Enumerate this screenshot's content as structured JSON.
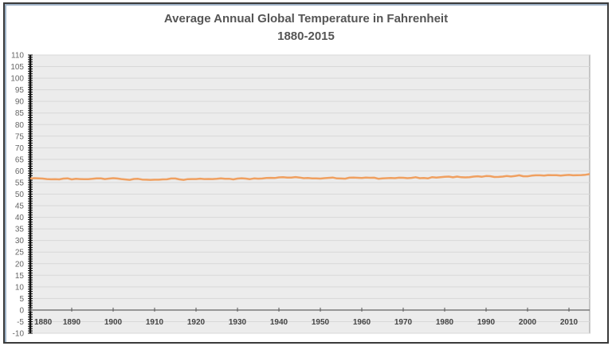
{
  "chart_data": {
    "type": "line",
    "title": "Average Annual Global Temperature in Fahrenheit",
    "subtitle": "1880-2015",
    "xlabel": "",
    "ylabel": "",
    "xlim": [
      1880,
      2015
    ],
    "ylim": [
      -10,
      110
    ],
    "y_ticks": [
      -10,
      -5,
      0,
      5,
      10,
      15,
      20,
      25,
      30,
      35,
      40,
      45,
      50,
      55,
      60,
      65,
      70,
      75,
      80,
      85,
      90,
      95,
      100,
      105,
      110
    ],
    "x_ticks": [
      1880,
      1890,
      1900,
      1910,
      1920,
      1930,
      1940,
      1950,
      1960,
      1970,
      1980,
      1990,
      2000,
      2010
    ],
    "grid": true,
    "legend": "none",
    "colors": {
      "line": "#f0a060",
      "plot_background": "#ececec",
      "grid": "#d8d8d8"
    },
    "series": [
      {
        "x_start": 1880,
        "values": [
          56.71,
          56.86,
          56.82,
          56.69,
          56.5,
          56.41,
          56.44,
          56.35,
          56.69,
          56.82,
          56.37,
          56.6,
          56.51,
          56.44,
          56.46,
          56.59,
          56.8,
          56.8,
          56.51,
          56.69,
          56.86,
          56.73,
          56.5,
          56.33,
          56.15,
          56.53,
          56.6,
          56.3,
          56.23,
          56.14,
          56.23,
          56.21,
          56.35,
          56.39,
          56.73,
          56.75,
          56.35,
          56.17,
          56.48,
          56.51,
          56.51,
          56.66,
          56.5,
          56.53,
          56.51,
          56.6,
          56.82,
          56.62,
          56.64,
          56.35,
          56.71,
          56.84,
          56.71,
          56.48,
          56.78,
          56.66,
          56.75,
          56.96,
          57.0,
          56.96,
          57.23,
          57.32,
          57.13,
          57.16,
          57.36,
          57.16,
          56.87,
          56.95,
          56.8,
          56.8,
          56.69,
          56.87,
          57.02,
          57.14,
          56.77,
          56.75,
          56.66,
          57.09,
          57.11,
          57.05,
          56.95,
          57.11,
          57.05,
          57.09,
          56.64,
          56.8,
          56.89,
          56.96,
          56.86,
          57.09,
          57.05,
          56.86,
          57.02,
          57.29,
          56.87,
          56.98,
          56.82,
          57.32,
          57.13,
          57.29,
          57.47,
          57.58,
          57.25,
          57.56,
          57.29,
          57.22,
          57.32,
          57.58,
          57.7,
          57.49,
          57.81,
          57.74,
          57.4,
          57.41,
          57.58,
          57.81,
          57.59,
          57.85,
          58.1,
          57.7,
          57.7,
          57.97,
          58.13,
          58.12,
          57.97,
          58.22,
          58.15,
          58.19,
          57.97,
          58.17,
          58.3,
          58.1,
          58.15,
          58.22,
          58.35,
          58.62
        ]
      }
    ]
  }
}
